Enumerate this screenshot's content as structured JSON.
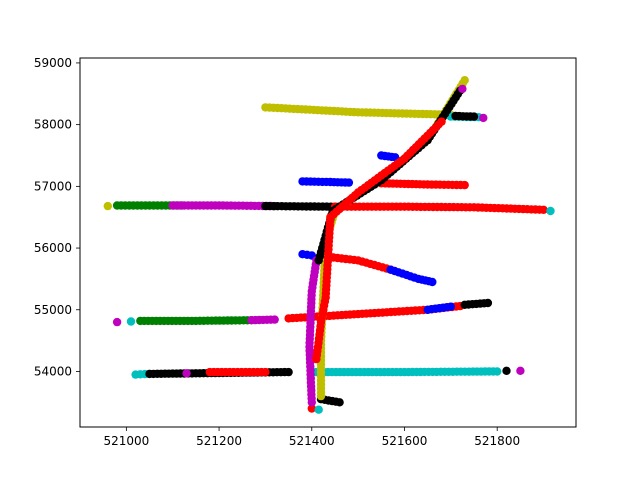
{
  "chart_data": {
    "type": "scatter",
    "title": "",
    "xlabel": "",
    "ylabel": "",
    "xlim": [
      520900,
      521970
    ],
    "ylim": [
      53100,
      59080
    ],
    "xticks": [
      {
        "value": 521000,
        "label": "521000"
      },
      {
        "value": 521200,
        "label": "521200"
      },
      {
        "value": 521400,
        "label": "521400"
      },
      {
        "value": 521600,
        "label": "521600"
      },
      {
        "value": 521800,
        "label": "521800"
      }
    ],
    "yticks": [
      {
        "value": 54000,
        "label": "54000"
      },
      {
        "value": 55000,
        "label": "55000"
      },
      {
        "value": 56000,
        "label": "56000"
      },
      {
        "value": 57000,
        "label": "57000"
      },
      {
        "value": 58000,
        "label": "58000"
      },
      {
        "value": 59000,
        "label": "59000"
      }
    ],
    "grid": false,
    "legend": "none",
    "colors": {
      "yellow": "#bfbf00",
      "black": "#000000",
      "cyan": "#00bfbf",
      "magenta": "#bf00bf",
      "red": "#ff0000",
      "green": "#008000",
      "blue": "#0000ff"
    },
    "series": [
      {
        "color": "yellow",
        "points": [
          [
            521300,
            58280
          ],
          [
            521500,
            58200
          ],
          [
            521700,
            58160
          ]
        ]
      },
      {
        "color": "cyan",
        "points": [
          [
            521700,
            58130
          ],
          [
            521760,
            58120
          ]
        ]
      },
      {
        "color": "black",
        "points": [
          [
            521710,
            58140
          ],
          [
            521750,
            58130
          ]
        ]
      },
      {
        "color": "magenta",
        "points": [
          [
            521770,
            58110
          ]
        ]
      },
      {
        "color": "blue",
        "points": [
          [
            521550,
            57500
          ],
          [
            521580,
            57470
          ]
        ]
      },
      {
        "color": "blue",
        "points": [
          [
            521380,
            57080
          ],
          [
            521440,
            57070
          ],
          [
            521480,
            57060
          ]
        ]
      },
      {
        "color": "red",
        "points": [
          [
            521550,
            57050
          ],
          [
            521650,
            57030
          ],
          [
            521730,
            57020
          ]
        ]
      },
      {
        "color": "yellow",
        "points": [
          [
            520960,
            56680
          ]
        ]
      },
      {
        "color": "green",
        "points": [
          [
            520980,
            56690
          ],
          [
            521050,
            56690
          ],
          [
            521120,
            56690
          ]
        ]
      },
      {
        "color": "magenta",
        "points": [
          [
            521100,
            56690
          ],
          [
            521200,
            56690
          ],
          [
            521320,
            56680
          ]
        ]
      },
      {
        "color": "black",
        "points": [
          [
            521300,
            56680
          ],
          [
            521450,
            56670
          ]
        ]
      },
      {
        "color": "red",
        "points": [
          [
            521450,
            56670
          ],
          [
            521600,
            56670
          ],
          [
            521750,
            56660
          ],
          [
            521900,
            56620
          ]
        ]
      },
      {
        "color": "cyan",
        "points": [
          [
            521915,
            56600
          ]
        ]
      },
      {
        "color": "blue",
        "points": [
          [
            521380,
            55900
          ],
          [
            521400,
            55880
          ]
        ]
      },
      {
        "color": "red",
        "points": [
          [
            521420,
            55870
          ],
          [
            521500,
            55800
          ],
          [
            521570,
            55650
          ]
        ]
      },
      {
        "color": "blue",
        "points": [
          [
            521570,
            55650
          ],
          [
            521630,
            55500
          ],
          [
            521660,
            55450
          ]
        ]
      },
      {
        "color": "magenta",
        "points": [
          [
            520980,
            54800
          ]
        ]
      },
      {
        "color": "cyan",
        "points": [
          [
            521010,
            54810
          ]
        ]
      },
      {
        "color": "green",
        "points": [
          [
            521030,
            54820
          ],
          [
            521150,
            54820
          ],
          [
            521270,
            54830
          ]
        ]
      },
      {
        "color": "magenta",
        "points": [
          [
            521270,
            54830
          ],
          [
            521320,
            54840
          ]
        ]
      },
      {
        "color": "red",
        "points": [
          [
            521350,
            54860
          ],
          [
            521500,
            54930
          ],
          [
            521650,
            55000
          ],
          [
            521720,
            55060
          ]
        ]
      },
      {
        "color": "blue",
        "points": [
          [
            521650,
            55000
          ],
          [
            521700,
            55050
          ]
        ]
      },
      {
        "color": "black",
        "points": [
          [
            521730,
            55080
          ],
          [
            521780,
            55110
          ]
        ]
      },
      {
        "color": "cyan",
        "points": [
          [
            521020,
            53950
          ],
          [
            521050,
            53960
          ]
        ]
      },
      {
        "color": "black",
        "points": [
          [
            521050,
            53960
          ],
          [
            521150,
            53970
          ],
          [
            521250,
            53980
          ],
          [
            521350,
            53990
          ]
        ]
      },
      {
        "color": "red",
        "points": [
          [
            521180,
            53990
          ],
          [
            521300,
            53990
          ]
        ]
      },
      {
        "color": "magenta",
        "points": [
          [
            521130,
            53970
          ]
        ]
      },
      {
        "color": "cyan",
        "points": [
          [
            521400,
            53990
          ],
          [
            521600,
            53990
          ],
          [
            521800,
            54000
          ]
        ]
      },
      {
        "color": "black",
        "points": [
          [
            521820,
            54010
          ]
        ]
      },
      {
        "color": "magenta",
        "points": [
          [
            521850,
            54010
          ]
        ]
      },
      {
        "color": "black",
        "points": [
          [
            521420,
            53550
          ],
          [
            521460,
            53500
          ]
        ]
      },
      {
        "color": "red",
        "points": [
          [
            521400,
            53400
          ]
        ]
      },
      {
        "color": "cyan",
        "points": [
          [
            521415,
            53380
          ]
        ]
      },
      {
        "color": "magenta",
        "points": [
          [
            521400,
            53500
          ],
          [
            521395,
            54400
          ],
          [
            521400,
            55300
          ],
          [
            521410,
            55800
          ]
        ]
      },
      {
        "color": "yellow",
        "points": [
          [
            521420,
            53600
          ],
          [
            521420,
            54500
          ],
          [
            521425,
            55300
          ],
          [
            521430,
            56100
          ],
          [
            521450,
            56600
          ],
          [
            521550,
            57150
          ],
          [
            521650,
            57750
          ],
          [
            521730,
            58720
          ]
        ]
      },
      {
        "color": "black",
        "points": [
          [
            521415,
            55800
          ],
          [
            521430,
            56200
          ],
          [
            521445,
            56600
          ],
          [
            521550,
            57100
          ],
          [
            521650,
            57750
          ],
          [
            521720,
            58550
          ]
        ]
      },
      {
        "color": "red",
        "points": [
          [
            521410,
            54200
          ],
          [
            521420,
            54800
          ],
          [
            521430,
            55200
          ],
          [
            521440,
            56500
          ],
          [
            521500,
            56900
          ],
          [
            521600,
            57450
          ],
          [
            521680,
            58050
          ]
        ]
      },
      {
        "color": "magenta",
        "points": [
          [
            521725,
            58580
          ]
        ]
      }
    ]
  }
}
